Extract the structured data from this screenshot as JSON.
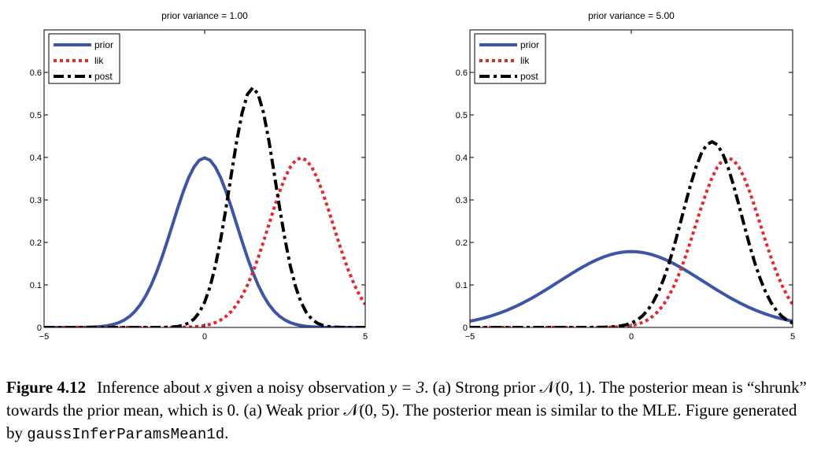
{
  "colors": {
    "prior": "#3b55a8",
    "lik": "#e8262e",
    "post": "#000000",
    "axis": "#000000"
  },
  "chart_data": [
    {
      "type": "line",
      "title": "prior variance = 1.00",
      "xlim": [
        -5,
        5
      ],
      "ylim": [
        0,
        0.7
      ],
      "xticks": [
        "-5",
        "0",
        "5"
      ],
      "yticks": [
        "0",
        "0.1",
        "0.2",
        "0.3",
        "0.4",
        "0.5",
        "0.6"
      ],
      "legend_position": "top-left",
      "grid": false,
      "series": [
        {
          "name": "prior",
          "style": "solid",
          "mean": 0,
          "variance": 1
        },
        {
          "name": "lik",
          "style": "dotted",
          "mean": 3,
          "variance": 1
        },
        {
          "name": "post",
          "style": "dashdot",
          "mean": 1.5,
          "variance": 0.5
        }
      ]
    },
    {
      "type": "line",
      "title": "prior variance = 5.00",
      "xlim": [
        -5,
        5
      ],
      "ylim": [
        0,
        0.7
      ],
      "xticks": [
        "-5",
        "0",
        "5"
      ],
      "yticks": [
        "0",
        "0.1",
        "0.2",
        "0.3",
        "0.4",
        "0.5",
        "0.6"
      ],
      "legend_position": "top-left",
      "grid": false,
      "series": [
        {
          "name": "prior",
          "style": "solid",
          "mean": 0,
          "variance": 5
        },
        {
          "name": "lik",
          "style": "dotted",
          "mean": 3,
          "variance": 1
        },
        {
          "name": "post",
          "style": "dashdot",
          "mean": 2.5,
          "variance": 0.8333
        }
      ]
    }
  ],
  "caption": {
    "label": "Figure 4.12",
    "text_1": "Inference about ",
    "var_x": "x",
    "text_2": " given a noisy observation ",
    "eq_y": "y = 3",
    "text_3": ". (a) Strong prior ",
    "prior_strong": "𝒩(0, 1)",
    "text_4": ". The posterior mean is “shrunk” towards the prior mean, which is 0. (a) Weak prior ",
    "prior_weak": "𝒩(0, 5)",
    "text_5": ". The posterior mean is similar to the MLE. Figure generated by ",
    "code": "gaussInferParamsMean1d",
    "text_6": "."
  }
}
